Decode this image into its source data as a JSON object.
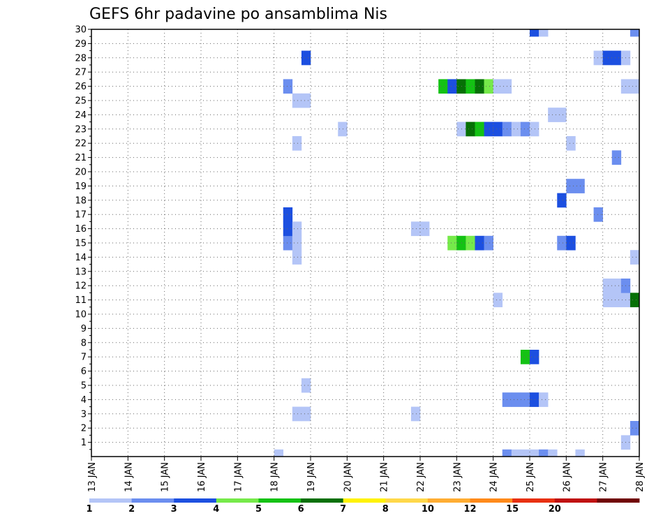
{
  "chart_data": {
    "type": "heatmap",
    "title": "GEFS 6hr padavine po ansamblima Nis",
    "xlabel": "",
    "ylabel": "",
    "x_tick_labels": [
      "13 JAN",
      "14 JAN",
      "15 JAN",
      "16 JAN",
      "17 JAN",
      "18 JAN",
      "19 JAN",
      "20 JAN",
      "21 JAN",
      "22 JAN",
      "23 JAN",
      "24 JAN",
      "25 JAN",
      "26 JAN",
      "27 JAN",
      "28 JAN"
    ],
    "y_tick_labels": [
      "1",
      "2",
      "3",
      "4",
      "5",
      "6",
      "7",
      "8",
      "9",
      "10",
      "11",
      "12",
      "13",
      "14",
      "15",
      "16",
      "17",
      "18",
      "19",
      "20",
      "21",
      "22",
      "23",
      "24",
      "25",
      "26",
      "27",
      "28",
      "29",
      "30"
    ],
    "xlim_days": [
      13,
      28
    ],
    "ylim": [
      0,
      30
    ],
    "time_step_hours": 6,
    "grid": true,
    "colorbar": {
      "labels": [
        "1",
        "2",
        "3",
        "4",
        "5",
        "6",
        "7",
        "8",
        "10",
        "12",
        "15",
        "20"
      ],
      "colors": [
        "#b4c5f7",
        "#6b8eef",
        "#1c4fe0",
        "#76ea4a",
        "#14c214",
        "#067006",
        "#fff200",
        "#ffd84a",
        "#ffad33",
        "#ff8a1a",
        "#e83010",
        "#c01010",
        "#700000"
      ]
    },
    "cells": [
      {
        "day": 18.0,
        "member": 0,
        "c": 1
      },
      {
        "day": 24.25,
        "member": 0,
        "c": 2
      },
      {
        "day": 24.5,
        "member": 0,
        "c": 1
      },
      {
        "day": 24.75,
        "member": 0,
        "c": 1
      },
      {
        "day": 25.0,
        "member": 0,
        "c": 1
      },
      {
        "day": 25.25,
        "member": 0,
        "c": 2
      },
      {
        "day": 25.5,
        "member": 0,
        "c": 1
      },
      {
        "day": 26.25,
        "member": 0,
        "c": 1
      },
      {
        "day": 27.5,
        "member": 1,
        "c": 1
      },
      {
        "day": 27.75,
        "member": 2,
        "c": 2
      },
      {
        "day": 18.5,
        "member": 3,
        "c": 1
      },
      {
        "day": 18.75,
        "member": 3,
        "c": 1
      },
      {
        "day": 21.75,
        "member": 3,
        "c": 1
      },
      {
        "day": 24.25,
        "member": 4,
        "c": 2
      },
      {
        "day": 24.5,
        "member": 4,
        "c": 2
      },
      {
        "day": 24.75,
        "member": 4,
        "c": 2
      },
      {
        "day": 25.0,
        "member": 4,
        "c": 3
      },
      {
        "day": 25.25,
        "member": 4,
        "c": 1
      },
      {
        "day": 18.75,
        "member": 5,
        "c": 1
      },
      {
        "day": 24.75,
        "member": 7,
        "c": 5
      },
      {
        "day": 25.0,
        "member": 7,
        "c": 3
      },
      {
        "day": 24.0,
        "member": 11,
        "c": 1
      },
      {
        "day": 27.0,
        "member": 11,
        "c": 1
      },
      {
        "day": 27.25,
        "member": 11,
        "c": 1
      },
      {
        "day": 27.5,
        "member": 11,
        "c": 1
      },
      {
        "day": 27.75,
        "member": 11,
        "c": 6
      },
      {
        "day": 27.0,
        "member": 12,
        "c": 1
      },
      {
        "day": 27.25,
        "member": 12,
        "c": 1
      },
      {
        "day": 27.5,
        "member": 12,
        "c": 2
      },
      {
        "day": 18.5,
        "member": 14,
        "c": 1
      },
      {
        "day": 27.75,
        "member": 14,
        "c": 1
      },
      {
        "day": 18.25,
        "member": 15,
        "c": 2
      },
      {
        "day": 18.5,
        "member": 15,
        "c": 1
      },
      {
        "day": 22.75,
        "member": 15,
        "c": 4
      },
      {
        "day": 23.0,
        "member": 15,
        "c": 5
      },
      {
        "day": 23.25,
        "member": 15,
        "c": 4
      },
      {
        "day": 23.5,
        "member": 15,
        "c": 3
      },
      {
        "day": 23.75,
        "member": 15,
        "c": 2
      },
      {
        "day": 25.75,
        "member": 15,
        "c": 2
      },
      {
        "day": 26.0,
        "member": 15,
        "c": 3
      },
      {
        "day": 18.25,
        "member": 16,
        "c": 3
      },
      {
        "day": 18.5,
        "member": 16,
        "c": 1
      },
      {
        "day": 21.75,
        "member": 16,
        "c": 1
      },
      {
        "day": 22.0,
        "member": 16,
        "c": 1
      },
      {
        "day": 18.25,
        "member": 17,
        "c": 3
      },
      {
        "day": 26.75,
        "member": 17,
        "c": 2
      },
      {
        "day": 25.75,
        "member": 18,
        "c": 3
      },
      {
        "day": 26.0,
        "member": 19,
        "c": 2
      },
      {
        "day": 26.25,
        "member": 19,
        "c": 2
      },
      {
        "day": 27.25,
        "member": 21,
        "c": 2
      },
      {
        "day": 18.5,
        "member": 22,
        "c": 1
      },
      {
        "day": 26.0,
        "member": 22,
        "c": 1
      },
      {
        "day": 19.75,
        "member": 23,
        "c": 1
      },
      {
        "day": 23.0,
        "member": 23,
        "c": 1
      },
      {
        "day": 23.25,
        "member": 23,
        "c": 6
      },
      {
        "day": 23.5,
        "member": 23,
        "c": 5
      },
      {
        "day": 23.75,
        "member": 23,
        "c": 3
      },
      {
        "day": 24.0,
        "member": 23,
        "c": 3
      },
      {
        "day": 24.25,
        "member": 23,
        "c": 2
      },
      {
        "day": 24.5,
        "member": 23,
        "c": 1
      },
      {
        "day": 24.75,
        "member": 23,
        "c": 2
      },
      {
        "day": 25.0,
        "member": 23,
        "c": 1
      },
      {
        "day": 25.5,
        "member": 24,
        "c": 1
      },
      {
        "day": 25.75,
        "member": 24,
        "c": 1
      },
      {
        "day": 18.5,
        "member": 25,
        "c": 1
      },
      {
        "day": 18.75,
        "member": 25,
        "c": 1
      },
      {
        "day": 18.25,
        "member": 26,
        "c": 2
      },
      {
        "day": 22.5,
        "member": 26,
        "c": 5
      },
      {
        "day": 22.75,
        "member": 26,
        "c": 3
      },
      {
        "day": 23.0,
        "member": 26,
        "c": 6
      },
      {
        "day": 23.25,
        "member": 26,
        "c": 5
      },
      {
        "day": 23.5,
        "member": 26,
        "c": 6
      },
      {
        "day": 23.75,
        "member": 26,
        "c": 4
      },
      {
        "day": 24.0,
        "member": 26,
        "c": 1
      },
      {
        "day": 24.25,
        "member": 26,
        "c": 1
      },
      {
        "day": 27.5,
        "member": 26,
        "c": 1
      },
      {
        "day": 27.75,
        "member": 26,
        "c": 1
      },
      {
        "day": 18.75,
        "member": 28,
        "c": 3
      },
      {
        "day": 26.75,
        "member": 28,
        "c": 1
      },
      {
        "day": 27.0,
        "member": 28,
        "c": 3
      },
      {
        "day": 27.25,
        "member": 28,
        "c": 3
      },
      {
        "day": 27.5,
        "member": 28,
        "c": 1
      },
      {
        "day": 25.0,
        "member": 30,
        "c": 3
      },
      {
        "day": 25.25,
        "member": 30,
        "c": 1
      },
      {
        "day": 27.75,
        "member": 30,
        "c": 2
      }
    ]
  }
}
